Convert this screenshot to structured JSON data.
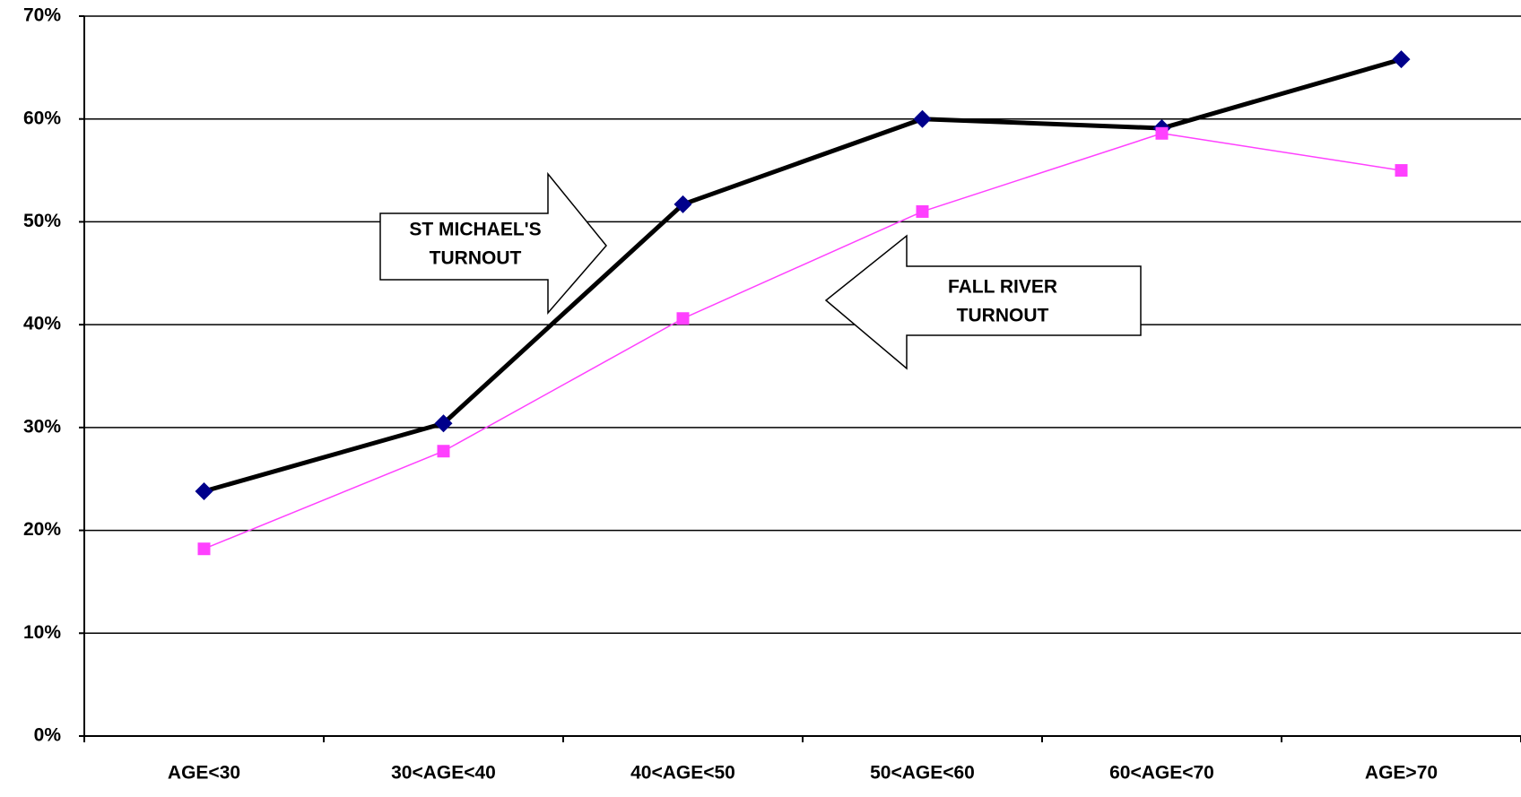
{
  "chart_data": {
    "type": "line",
    "categories": [
      "AGE<30",
      "30<AGE<40",
      "40<AGE<50",
      "50<AGE<60",
      "60<AGE<70",
      "AGE>70"
    ],
    "series": [
      {
        "color": "#000000",
        "marker_color": "#00008b",
        "values": [
          23.8,
          30.4,
          51.7,
          60.0,
          59.1,
          65.8
        ]
      },
      {
        "color": "#ff40ff",
        "marker_color": "#ff40ff",
        "values": [
          18.2,
          27.7,
          40.6,
          51.0,
          58.6,
          55.0
        ]
      }
    ],
    "ylim": [
      0,
      70
    ],
    "yticks": [
      {
        "value": 0,
        "label": "0%"
      },
      {
        "value": 10,
        "label": "10%"
      },
      {
        "value": 20,
        "label": "20%"
      },
      {
        "value": 30,
        "label": "30%"
      },
      {
        "value": 40,
        "label": "40%"
      },
      {
        "value": 50,
        "label": "50%"
      },
      {
        "value": 60,
        "label": "60%"
      },
      {
        "value": 70,
        "label": "70%"
      }
    ],
    "grid": true,
    "annotations": [
      {
        "lines": [
          "ST MICHAEL'S",
          "TURNOUT"
        ]
      },
      {
        "lines": [
          "FALL RIVER",
          "TURNOUT"
        ]
      }
    ]
  }
}
